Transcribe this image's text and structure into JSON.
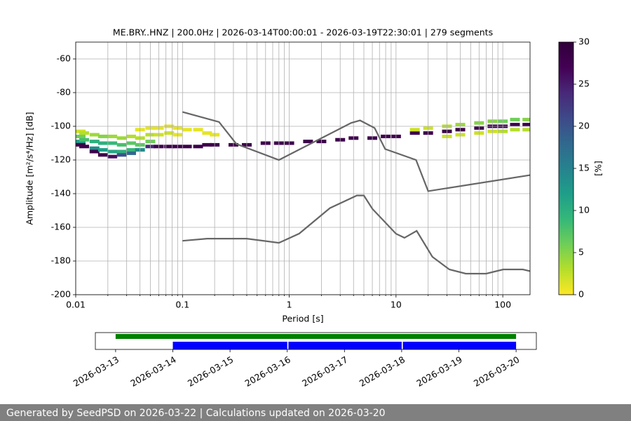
{
  "chart_data": [
    {
      "type": "ppsd",
      "title": "ME.BRY..HNZ | 200.0Hz | 2026-03-14T00:00:01 - 2026-03-19T22:30:01 | 279 segments",
      "x_label": "Period [s]",
      "y_label": "Amplitude [m²/s⁴/Hz] [dB]",
      "xscale": "log",
      "xlim": [
        0.01,
        180
      ],
      "ylim": [
        -200,
        -50
      ],
      "xticks": [
        0.01,
        0.1,
        1,
        10,
        100
      ],
      "xminorticks": [
        0.02,
        0.03,
        0.04,
        0.05,
        0.06,
        0.07,
        0.08,
        0.09,
        0.2,
        0.3,
        0.4,
        0.5,
        0.6,
        0.7,
        0.8,
        0.9,
        2,
        3,
        4,
        5,
        6,
        7,
        8,
        9,
        20,
        30,
        40,
        50,
        60,
        70,
        80,
        90
      ],
      "yticks": [
        -200,
        -180,
        -160,
        -140,
        -120,
        -100,
        -80,
        -60
      ],
      "grid": true,
      "colorbar": {
        "label": "[%]",
        "lim": [
          0,
          30
        ],
        "ticks": [
          0,
          5,
          10,
          15,
          20,
          25,
          30
        ],
        "colormap": [
          "#fde725",
          "#b5de2b",
          "#6ece58",
          "#35b779",
          "#1f9e89",
          "#26828e",
          "#31688e",
          "#3e4989",
          "#482878",
          "#440154",
          "#30003a"
        ]
      },
      "density": {
        "cells": [
          [
            0.01,
            -103,
            2
          ],
          [
            0.01,
            -106,
            6
          ],
          [
            0.01,
            -109,
            12
          ],
          [
            0.01,
            -111,
            28
          ],
          [
            0.012,
            -104,
            3
          ],
          [
            0.012,
            -108,
            8
          ],
          [
            0.012,
            -112,
            28
          ],
          [
            0.015,
            -105,
            4
          ],
          [
            0.015,
            -109,
            10
          ],
          [
            0.015,
            -113,
            14
          ],
          [
            0.015,
            -115,
            28
          ],
          [
            0.018,
            -106,
            5
          ],
          [
            0.018,
            -110,
            10
          ],
          [
            0.018,
            -114,
            12
          ],
          [
            0.018,
            -117,
            28
          ],
          [
            0.022,
            -106,
            4
          ],
          [
            0.022,
            -110,
            9
          ],
          [
            0.022,
            -115,
            11
          ],
          [
            0.022,
            -118,
            26
          ],
          [
            0.027,
            -107,
            4
          ],
          [
            0.027,
            -111,
            8
          ],
          [
            0.027,
            -115,
            10
          ],
          [
            0.027,
            -117,
            20
          ],
          [
            0.033,
            -106,
            3
          ],
          [
            0.033,
            -110,
            7
          ],
          [
            0.033,
            -114,
            9
          ],
          [
            0.033,
            -116,
            18
          ],
          [
            0.04,
            -102,
            1
          ],
          [
            0.04,
            -107,
            3
          ],
          [
            0.04,
            -111,
            7
          ],
          [
            0.04,
            -114,
            14
          ],
          [
            0.05,
            -101,
            1
          ],
          [
            0.05,
            -105,
            3
          ],
          [
            0.05,
            -109,
            6
          ],
          [
            0.05,
            -112,
            24
          ],
          [
            0.06,
            -101,
            1
          ],
          [
            0.06,
            -105,
            2
          ],
          [
            0.06,
            -112,
            28
          ],
          [
            0.075,
            -100,
            1
          ],
          [
            0.075,
            -104,
            2
          ],
          [
            0.075,
            -112,
            28
          ],
          [
            0.09,
            -101,
            1
          ],
          [
            0.09,
            -105,
            1
          ],
          [
            0.09,
            -112,
            28
          ],
          [
            0.11,
            -102,
            1
          ],
          [
            0.11,
            -112,
            28
          ],
          [
            0.14,
            -102,
            1
          ],
          [
            0.14,
            -112,
            28
          ],
          [
            0.17,
            -104,
            1
          ],
          [
            0.17,
            -111,
            28
          ],
          [
            0.2,
            -105,
            1
          ],
          [
            0.2,
            -111,
            28
          ],
          [
            0.3,
            -111,
            28
          ],
          [
            0.4,
            -111,
            28
          ],
          [
            0.6,
            -110,
            28
          ],
          [
            0.8,
            -110,
            28
          ],
          [
            1,
            -110,
            28
          ],
          [
            1.5,
            -109,
            28
          ],
          [
            2,
            -109,
            28
          ],
          [
            3,
            -108,
            28
          ],
          [
            4,
            -107,
            28
          ],
          [
            6,
            -107,
            28
          ],
          [
            8,
            -106,
            28
          ],
          [
            10,
            -106,
            28
          ],
          [
            15,
            -104,
            28
          ],
          [
            15,
            -102,
            2
          ],
          [
            20,
            -104,
            28
          ],
          [
            20,
            -101,
            2
          ],
          [
            30,
            -103,
            28
          ],
          [
            30,
            -100,
            3
          ],
          [
            30,
            -106,
            2
          ],
          [
            40,
            -102,
            28
          ],
          [
            40,
            -99,
            4
          ],
          [
            40,
            -105,
            2
          ],
          [
            60,
            -101,
            28
          ],
          [
            60,
            -98,
            5
          ],
          [
            60,
            -104,
            2
          ],
          [
            80,
            -100,
            28
          ],
          [
            80,
            -97,
            5
          ],
          [
            80,
            -103,
            2
          ],
          [
            100,
            -100,
            28
          ],
          [
            100,
            -97,
            6
          ],
          [
            100,
            -103,
            3
          ],
          [
            130,
            -99,
            28
          ],
          [
            130,
            -96,
            6
          ],
          [
            130,
            -102,
            3
          ],
          [
            170,
            -99,
            28
          ],
          [
            170,
            -96,
            5
          ],
          [
            170,
            -102,
            3
          ]
        ]
      },
      "series": [
        {
          "color": "#666666",
          "x": [
            0.1,
            0.17,
            0.4,
            0.8,
            1.24,
            2.4,
            4.3,
            5,
            6,
            10,
            12,
            15.6,
            21.9,
            31.6,
            45,
            70,
            101,
            154,
            180
          ],
          "values": [
            -168,
            -166.7,
            -166.7,
            -169.2,
            -163.7,
            -148.6,
            -141.1,
            -141.1,
            -149,
            -163.8,
            -166.2,
            -162.1,
            -177.5,
            -185,
            -187.5,
            -187.5,
            -185,
            -185,
            -186
          ]
        },
        {
          "color": "#666666",
          "x": [
            0.1,
            0.22,
            0.32,
            0.8,
            3.8,
            4.6,
            6.3,
            7.9,
            15.4,
            20,
            180
          ],
          "values": [
            -91.5,
            -97.4,
            -110.5,
            -120,
            -98,
            -96.5,
            -101,
            -113.5,
            -120,
            -138.5,
            -129
          ]
        }
      ]
    },
    {
      "type": "timeline",
      "xlim": [
        "2026-03-12T15:30",
        "2026-03-20T08:30"
      ],
      "xticks": [
        "2026-03-13",
        "2026-03-14",
        "2026-03-15",
        "2026-03-16",
        "2026-03-17",
        "2026-03-18",
        "2026-03-19",
        "2026-03-20"
      ],
      "rows": [
        {
          "color": "#008000",
          "ranges": [
            [
              "2026-03-13T00:00",
              "2026-03-20T00:00"
            ]
          ]
        },
        {
          "color": "#0000ff",
          "ranges": [
            [
              "2026-03-14T00:00",
              "2026-03-16T00:00"
            ],
            [
              "2026-03-16T00:30",
              "2026-03-18T00:00"
            ],
            [
              "2026-03-18T00:30",
              "2026-03-20T00:00"
            ]
          ]
        }
      ]
    }
  ],
  "footer": "Generated by SeedPSD on 2026-03-22 | Calculations updated on 2026-03-20"
}
